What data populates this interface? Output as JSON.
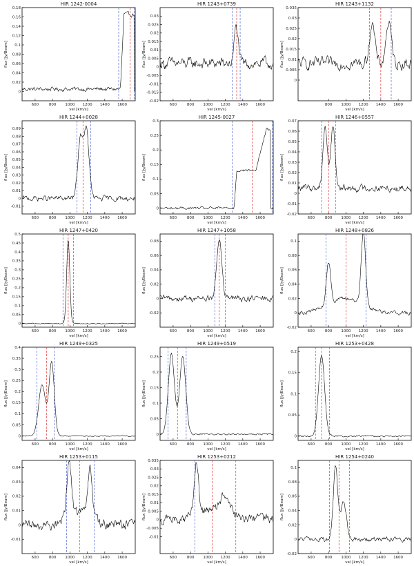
{
  "figure": {
    "xlabel": "vel [km/s]",
    "ylabel": "flux [Jy/Beam]",
    "colors": {
      "spectrum": "#000000",
      "red_marker": "#e0322e",
      "blue_marker": "#4a64d8"
    }
  },
  "chart_data": [
    {
      "type": "line",
      "title": "HIR 1242-0004",
      "xlim": [
        450,
        1750
      ],
      "ylim": [
        -0.02,
        0.18
      ],
      "xticks": [
        600,
        800,
        1000,
        1200,
        1400,
        1600
      ],
      "yticks": [
        0,
        0.02,
        0.04,
        0.06,
        0.08,
        0.1,
        0.12,
        0.14,
        0.16,
        0.18
      ],
      "yticklabels": [
        "0",
        "0.02",
        "0.04",
        "0.06",
        "0.08",
        "0.1",
        "0.12",
        "0.14",
        "0.16",
        "0.18"
      ],
      "center": 1690,
      "edges": [
        1560,
        1740
      ],
      "profile": {
        "type": "edge",
        "base": 0.005,
        "noise": 0.008,
        "components": [
          [
            1580,
            1620,
            1740,
            0.16
          ]
        ]
      }
    },
    {
      "type": "line",
      "title": "HIR 1243+0739",
      "xlim": [
        450,
        1750
      ],
      "ylim": [
        -0.02,
        0.035
      ],
      "xticks": [
        600,
        800,
        1000,
        1200,
        1400,
        1600
      ],
      "yticks": [
        -0.02,
        -0.015,
        -0.01,
        -0.005,
        0,
        0.005,
        0.01,
        0.015,
        0.02,
        0.025,
        0.03
      ],
      "yticklabels": [
        "-0.02",
        "-0.015",
        "-0.01",
        "-0.005",
        "0",
        "0.005",
        "0.01",
        "0.015",
        "0.02",
        "0.025",
        "0.03"
      ],
      "center": 1330,
      "edges": [
        1280,
        1370
      ],
      "profile": {
        "type": "gauss",
        "base": 0.002,
        "noise": 0.006,
        "components": [
          [
            1325,
            22,
            0.022
          ]
        ]
      }
    },
    {
      "type": "line",
      "title": "HIR 1243+1132",
      "xlim": [
        450,
        1750
      ],
      "ylim": [
        -0.01,
        0.035
      ],
      "xticks": [
        800,
        1000,
        1200,
        1400,
        1600
      ],
      "yticks": [
        0,
        0.005,
        0.01,
        0.015,
        0.02,
        0.025,
        0.03,
        0.035
      ],
      "yticklabels": [
        "0",
        "0.005",
        "0.01",
        "0.015",
        "0.02",
        "0.025",
        "0.03",
        "0.035"
      ],
      "center": 1400,
      "edges": [
        1270,
        1520
      ],
      "profile": {
        "type": "gauss",
        "base": 0.008,
        "noise": 0.005,
        "components": [
          [
            1300,
            30,
            0.02
          ],
          [
            1490,
            30,
            0.02
          ]
        ]
      }
    },
    {
      "type": "line",
      "title": "HIR 1244+0028",
      "xlim": [
        450,
        1750
      ],
      "ylim": [
        -0.02,
        0.1
      ],
      "xticks": [
        600,
        800,
        1000,
        1200,
        1400,
        1600
      ],
      "yticks": [
        -0.01,
        0,
        0.01,
        0.02,
        0.03,
        0.04,
        0.05,
        0.06,
        0.07,
        0.08,
        0.09
      ],
      "yticklabels": [
        "-0.01",
        "0",
        "0.01",
        "0.02",
        "0.03",
        "0.04",
        "0.05",
        "0.06",
        "0.07",
        "0.08",
        "0.09"
      ],
      "center": 1150,
      "edges": [
        1080,
        1240
      ],
      "profile": {
        "type": "gauss",
        "base": 0.0,
        "noise": 0.006,
        "components": [
          [
            1120,
            30,
            0.075
          ],
          [
            1190,
            30,
            0.085
          ]
        ]
      }
    },
    {
      "type": "line",
      "title": "HIR 1245-0027",
      "xlim": [
        450,
        1750
      ],
      "ylim": [
        -0.02,
        0.3
      ],
      "xticks": [
        600,
        800,
        1000,
        1200,
        1400,
        1600
      ],
      "yticks": [
        0,
        0.05,
        0.1,
        0.15,
        0.2,
        0.25,
        0.3
      ],
      "yticklabels": [
        "0",
        "0.05",
        "0.1",
        "0.15",
        "0.2",
        "0.25",
        "0.3"
      ],
      "center": 1510,
      "edges": [
        1280,
        1740
      ],
      "profile": {
        "type": "edge",
        "base": 0.0,
        "noise": 0.008,
        "components": [
          [
            1300,
            1330,
            1720,
            0.13
          ],
          [
            1550,
            1670,
            1720,
            0.14
          ]
        ]
      }
    },
    {
      "type": "line",
      "title": "HIR 1246+0557",
      "xlim": [
        450,
        1750
      ],
      "ylim": [
        -0.02,
        0.07
      ],
      "xticks": [
        600,
        800,
        1000,
        1200,
        1400,
        1600
      ],
      "yticks": [
        -0.02,
        -0.01,
        0,
        0.01,
        0.02,
        0.03,
        0.04,
        0.05,
        0.06,
        0.07
      ],
      "yticklabels": [
        "-0.02",
        "-0.01",
        "0",
        "0.01",
        "0.02",
        "0.03",
        "0.04",
        "0.05",
        "0.06",
        "0.07"
      ],
      "center": 800,
      "edges": [
        720,
        880
      ],
      "profile": {
        "type": "gauss",
        "base": 0.005,
        "noise": 0.006,
        "components": [
          [
            760,
            25,
            0.06
          ],
          [
            850,
            25,
            0.06
          ]
        ]
      }
    },
    {
      "type": "line",
      "title": "HIR 1247+0420",
      "xlim": [
        450,
        1750
      ],
      "ylim": [
        -0.02,
        0.5
      ],
      "xticks": [
        600,
        800,
        1000,
        1200,
        1400,
        1600
      ],
      "yticks": [
        0,
        0.05,
        0.1,
        0.15,
        0.2,
        0.25,
        0.3,
        0.35,
        0.4,
        0.45,
        0.5
      ],
      "yticklabels": [
        "0",
        "0.05",
        "0.1",
        "0.15",
        "0.2",
        "0.25",
        "0.3",
        "0.35",
        "0.4",
        "0.45",
        "0.5"
      ],
      "center": 980,
      "edges": [
        920,
        1040
      ],
      "profile": {
        "type": "gauss",
        "base": 0.0,
        "noise": 0.004,
        "components": [
          [
            980,
            18,
            0.47
          ]
        ]
      }
    },
    {
      "type": "line",
      "title": "HIR 1247+1058",
      "xlim": [
        450,
        1750
      ],
      "ylim": [
        -0.04,
        0.09
      ],
      "xticks": [
        600,
        800,
        1000,
        1200,
        1400,
        1600
      ],
      "yticks": [
        -0.02,
        0,
        0.02,
        0.04,
        0.06,
        0.08
      ],
      "yticklabels": [
        "-0.02",
        "0",
        "0.02",
        "0.04",
        "0.06",
        "0.08"
      ],
      "center": 1130,
      "edges": [
        1080,
        1200
      ],
      "profile": {
        "type": "gauss",
        "base": 0.0,
        "noise": 0.008,
        "components": [
          [
            1130,
            28,
            0.085
          ]
        ]
      }
    },
    {
      "type": "line",
      "title": "HIR 1248+0826",
      "xlim": [
        450,
        1750
      ],
      "ylim": [
        -0.02,
        0.11
      ],
      "xticks": [
        600,
        800,
        1000,
        1200,
        1400,
        1600
      ],
      "yticks": [
        -0.02,
        0,
        0.02,
        0.04,
        0.06,
        0.08,
        0.1
      ],
      "yticklabels": [
        "-0.02",
        "0",
        "0.02",
        "0.04",
        "0.06",
        "0.08",
        "0.1"
      ],
      "center": 1000,
      "edges": [
        770,
        1230
      ],
      "profile": {
        "type": "gauss",
        "base": 0.0,
        "noise": 0.005,
        "components": [
          [
            800,
            25,
            0.06
          ],
          [
            1200,
            25,
            0.1
          ],
          [
            1000,
            200,
            0.02
          ]
        ]
      }
    },
    {
      "type": "line",
      "title": "HIR 1249+0325",
      "xlim": [
        450,
        1750
      ],
      "ylim": [
        -0.02,
        0.4
      ],
      "xticks": [
        600,
        800,
        1000,
        1200,
        1400,
        1600
      ],
      "yticks": [
        0,
        0.05,
        0.1,
        0.15,
        0.2,
        0.25,
        0.3,
        0.35,
        0.4
      ],
      "yticklabels": [
        "0",
        "0.05",
        "0.1",
        "0.15",
        "0.2",
        "0.25",
        "0.3",
        "0.35",
        "0.4"
      ],
      "center": 730,
      "edges": [
        620,
        820
      ],
      "profile": {
        "type": "gauss",
        "base": 0.0,
        "noise": 0.004,
        "components": [
          [
            680,
            40,
            0.23
          ],
          [
            790,
            30,
            0.33
          ]
        ]
      }
    },
    {
      "type": "line",
      "title": "HIR 1249+0519",
      "xlim": [
        450,
        1750
      ],
      "ylim": [
        -0.02,
        0.28
      ],
      "xticks": [
        600,
        800,
        1000,
        1200,
        1400,
        1600
      ],
      "yticks": [
        0,
        0.05,
        0.1,
        0.15,
        0.2,
        0.25
      ],
      "yticklabels": [
        "0",
        "0.05",
        "0.1",
        "0.15",
        "0.2",
        "0.25"
      ],
      "center": 650,
      "edges": [
        540,
        750
      ],
      "profile": {
        "type": "gauss",
        "base": 0.0,
        "noise": 0.004,
        "components": [
          [
            580,
            35,
            0.26
          ],
          [
            710,
            35,
            0.25
          ]
        ]
      }
    },
    {
      "type": "line",
      "title": "HIR 1253+0428",
      "xlim": [
        450,
        1750
      ],
      "ylim": [
        -0.01,
        0.21
      ],
      "xticks": [
        600,
        800,
        1000,
        1200,
        1400,
        1600
      ],
      "yticks": [
        0,
        0.05,
        0.1,
        0.15,
        0.2
      ],
      "yticklabels": [
        "0",
        "0.05",
        "0.1",
        "0.15",
        "0.2"
      ],
      "center": 720,
      "edges": [
        650,
        810
      ],
      "profile": {
        "type": "gauss",
        "base": 0.0,
        "noise": 0.003,
        "components": [
          [
            720,
            35,
            0.19
          ]
        ]
      }
    },
    {
      "type": "line",
      "title": "HIR 1253+0115",
      "xlim": [
        450,
        1750
      ],
      "ylim": [
        -0.02,
        0.045
      ],
      "xticks": [
        600,
        800,
        1000,
        1200,
        1400,
        1600
      ],
      "yticks": [
        -0.01,
        0,
        0.01,
        0.02,
        0.03,
        0.04
      ],
      "yticklabels": [
        "-0.01",
        "0",
        "0.01",
        "0.02",
        "0.03",
        "0.04"
      ],
      "center": 1110,
      "edges": [
        960,
        1280
      ],
      "profile": {
        "type": "gauss",
        "base": 0.0,
        "noise": 0.006,
        "components": [
          [
            990,
            25,
            0.04
          ],
          [
            1230,
            25,
            0.035
          ],
          [
            1110,
            120,
            0.01
          ]
        ]
      }
    },
    {
      "type": "line",
      "title": "HIR 1253+0212",
      "xlim": [
        450,
        1750
      ],
      "ylim": [
        -0.02,
        0.035
      ],
      "xticks": [
        600,
        800,
        1000,
        1200,
        1400,
        1600
      ],
      "yticks": [
        -0.01,
        -0.005,
        0,
        0.005,
        0.01,
        0.015,
        0.02,
        0.025,
        0.03,
        0.035
      ],
      "yticklabels": [
        "-0.01",
        "-0.005",
        "0",
        "0.005",
        "0.01",
        "0.015",
        "0.02",
        "0.025",
        "0.03",
        "0.035"
      ],
      "center": 1050,
      "edges": [
        850,
        1320
      ],
      "profile": {
        "type": "gauss",
        "base": 0.0,
        "noise": 0.005,
        "components": [
          [
            870,
            25,
            0.03
          ],
          [
            1200,
            50,
            0.012
          ],
          [
            1050,
            150,
            0.006
          ]
        ]
      }
    },
    {
      "type": "line",
      "title": "HIR 1254+0240",
      "xlim": [
        450,
        1750
      ],
      "ylim": [
        -0.02,
        0.11
      ],
      "xticks": [
        600,
        800,
        1000,
        1200,
        1400,
        1600
      ],
      "yticks": [
        -0.02,
        0,
        0.02,
        0.04,
        0.06,
        0.08,
        0.1
      ],
      "yticklabels": [
        "-0.02",
        "0",
        "0.02",
        "0.04",
        "0.06",
        "0.08",
        "0.1"
      ],
      "center": 920,
      "edges": [
        810,
        1040
      ],
      "profile": {
        "type": "gauss",
        "base": 0.0,
        "noise": 0.006,
        "components": [
          [
            880,
            25,
            0.1
          ],
          [
            970,
            35,
            0.05
          ]
        ]
      }
    }
  ]
}
